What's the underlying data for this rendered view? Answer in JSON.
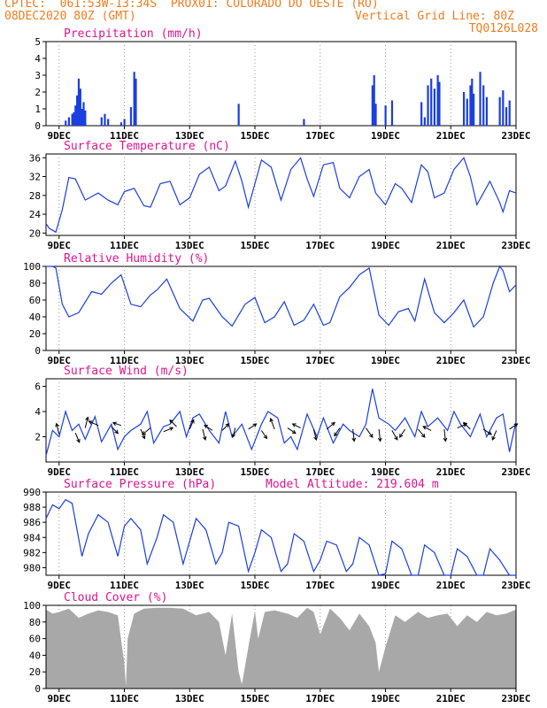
{
  "header": {
    "line1_left": "CPTEC:  061:53W-13:34S  PROX01: COLORADO DO OESTE (RO)",
    "line2_left": "08DEC2020 80Z (GMT)",
    "line2_right": "Vertical Grid Line: 80Z",
    "line3_right": "TQ0126L028"
  },
  "colors": {
    "header": "#f07c1e",
    "title": "#e0148c",
    "series": "#1a3fe0",
    "cloud": "#a8a8a8",
    "grid": "#9a9a9a"
  },
  "x_axis": {
    "start_day": 8.6,
    "end_day": 23,
    "ticks": [
      {
        "day": 9,
        "label": "9DEC"
      },
      {
        "day": 11,
        "label": "11DEC"
      },
      {
        "day": 13,
        "label": "13DEC"
      },
      {
        "day": 15,
        "label": "15DEC"
      },
      {
        "day": 17,
        "label": "17DEC"
      },
      {
        "day": 19,
        "label": "19DEC"
      },
      {
        "day": 21,
        "label": "21DEC"
      },
      {
        "day": 23,
        "label": "23DEC"
      }
    ]
  },
  "chart_data": [
    {
      "id": "precip",
      "type": "bar",
      "title": "Precipitation (mm/h)",
      "ylim": [
        0,
        5
      ],
      "yticks": [
        0,
        1,
        2,
        3,
        4,
        5
      ],
      "x": [
        9.2,
        9.3,
        9.4,
        9.45,
        9.5,
        9.55,
        9.6,
        9.65,
        9.7,
        9.75,
        9.8,
        10.3,
        10.4,
        10.5,
        10.9,
        11.0,
        11.2,
        11.3,
        11.35,
        14.5,
        16.5,
        18.6,
        18.65,
        18.7,
        19.0,
        19.2,
        20.1,
        20.2,
        20.3,
        20.4,
        20.5,
        20.6,
        20.65,
        21.4,
        21.5,
        21.6,
        21.65,
        21.7,
        21.9,
        22.0,
        22.1,
        22.5,
        22.6,
        22.7,
        22.8
      ],
      "values": [
        0.3,
        0.5,
        0.7,
        0.8,
        1.2,
        1.8,
        2.8,
        2.2,
        1.0,
        1.4,
        0.9,
        0.5,
        0.7,
        0.4,
        0.2,
        0.4,
        1.1,
        3.2,
        2.8,
        1.3,
        0.4,
        2.4,
        3.0,
        1.3,
        1.2,
        1.5,
        1.4,
        0.5,
        2.4,
        2.8,
        2.2,
        3.0,
        2.6,
        2.0,
        1.6,
        2.4,
        2.8,
        1.9,
        3.2,
        2.4,
        1.7,
        1.7,
        2.1,
        1.1,
        1.5
      ]
    },
    {
      "id": "temp",
      "type": "line",
      "title": "Surface Temperature (nC)",
      "ylim": [
        19.5,
        36.8
      ],
      "yticks": [
        20,
        24,
        28,
        32,
        36
      ],
      "x": [
        8.6,
        8.7,
        8.9,
        9.1,
        9.3,
        9.5,
        9.8,
        10.2,
        10.5,
        10.8,
        11.0,
        11.3,
        11.6,
        11.8,
        12.1,
        12.4,
        12.7,
        13.0,
        13.3,
        13.6,
        13.9,
        14.1,
        14.4,
        14.6,
        14.8,
        15.2,
        15.5,
        15.8,
        16.1,
        16.4,
        16.6,
        16.8,
        17.1,
        17.4,
        17.6,
        17.9,
        18.2,
        18.5,
        18.7,
        19.0,
        19.3,
        19.5,
        19.8,
        20.1,
        20.3,
        20.5,
        20.8,
        21.1,
        21.4,
        21.6,
        21.8,
        22.2,
        22.5,
        22.6,
        22.8,
        23.0
      ],
      "values": [
        22.0,
        21.0,
        20.2,
        25.0,
        31.8,
        31.5,
        27.0,
        28.5,
        27.0,
        26.0,
        28.8,
        29.5,
        25.8,
        25.5,
        30.5,
        31.0,
        26.0,
        27.5,
        32.5,
        34.0,
        29.0,
        30.0,
        35.3,
        31.0,
        25.5,
        35.5,
        34.0,
        27.0,
        33.5,
        36.0,
        31.5,
        27.8,
        34.5,
        35.0,
        29.5,
        27.5,
        32.0,
        33.5,
        28.5,
        26.0,
        30.5,
        29.5,
        26.5,
        34.5,
        33.0,
        27.5,
        28.5,
        33.5,
        36.0,
        32.0,
        26.0,
        31.0,
        26.5,
        24.5,
        29.0,
        28.5
      ]
    },
    {
      "id": "rh",
      "type": "line",
      "title": "Relative Humidity (%)",
      "ylim": [
        0,
        100
      ],
      "yticks": [
        0,
        20,
        40,
        60,
        80,
        100
      ],
      "x": [
        8.6,
        8.8,
        8.9,
        9.1,
        9.3,
        9.6,
        10.0,
        10.3,
        10.6,
        10.9,
        11.2,
        11.5,
        11.8,
        12.0,
        12.3,
        12.7,
        13.1,
        13.4,
        13.6,
        14.0,
        14.3,
        14.7,
        15.0,
        15.3,
        15.6,
        15.9,
        16.2,
        16.5,
        16.8,
        17.1,
        17.3,
        17.6,
        17.9,
        18.2,
        18.5,
        18.8,
        19.1,
        19.4,
        19.7,
        19.9,
        20.2,
        20.5,
        20.8,
        21.1,
        21.4,
        21.7,
        22.0,
        22.3,
        22.5,
        22.6,
        22.8,
        23.0
      ],
      "values": [
        100,
        100,
        98,
        55,
        40,
        45,
        70,
        67,
        80,
        90,
        55,
        52,
        66,
        72,
        85,
        50,
        35,
        60,
        62,
        40,
        29,
        55,
        63,
        33,
        40,
        58,
        30,
        36,
        55,
        30,
        33,
        64,
        75,
        90,
        98,
        42,
        30,
        46,
        50,
        35,
        85,
        45,
        33,
        45,
        60,
        28,
        40,
        80,
        100,
        95,
        70,
        78
      ]
    },
    {
      "id": "wind",
      "type": "line",
      "title": "Surface Wind (m/s)",
      "ylim": [
        0,
        6.6
      ],
      "yticks": [
        2,
        4,
        6
      ],
      "x": [
        8.6,
        8.8,
        9.0,
        9.2,
        9.4,
        9.6,
        9.8,
        10.1,
        10.3,
        10.6,
        10.8,
        11.0,
        11.2,
        11.5,
        11.7,
        11.9,
        12.2,
        12.4,
        12.7,
        12.9,
        13.1,
        13.3,
        13.6,
        13.9,
        14.1,
        14.3,
        14.6,
        14.9,
        15.2,
        15.4,
        15.7,
        15.9,
        16.1,
        16.3,
        16.6,
        16.9,
        17.1,
        17.4,
        17.7,
        17.9,
        18.2,
        18.4,
        18.6,
        18.8,
        19.1,
        19.3,
        19.6,
        19.9,
        20.1,
        20.3,
        20.6,
        20.9,
        21.1,
        21.3,
        21.6,
        21.9,
        22.1,
        22.4,
        22.6,
        22.8,
        23.0
      ],
      "values": [
        0.5,
        2.5,
        2.0,
        4.0,
        2.5,
        3.0,
        1.8,
        3.6,
        1.6,
        3.0,
        1.0,
        2.0,
        2.5,
        3.0,
        4.0,
        1.5,
        2.8,
        3.0,
        4.0,
        2.0,
        3.5,
        3.8,
        2.5,
        1.5,
        4.0,
        2.0,
        3.0,
        1.0,
        3.0,
        4.0,
        3.5,
        1.5,
        2.0,
        1.0,
        3.8,
        2.0,
        3.5,
        1.5,
        3.0,
        2.5,
        2.0,
        3.0,
        5.8,
        3.5,
        3.0,
        2.5,
        3.5,
        2.0,
        4.0,
        2.8,
        3.5,
        2.5,
        4.0,
        3.0,
        2.0,
        3.8,
        2.0,
        3.5,
        3.8,
        0.8,
        3.2
      ],
      "vectors": [
        {
          "x": 9.0,
          "y": 2.2,
          "u": -0.2,
          "v": 0.8
        },
        {
          "x": 9.5,
          "y": 2.3,
          "u": 0.3,
          "v": -0.7
        },
        {
          "x": 9.8,
          "y": 2.7,
          "u": 0.2,
          "v": 0.8
        },
        {
          "x": 10.2,
          "y": 2.9,
          "u": -0.7,
          "v": 0.3
        },
        {
          "x": 10.6,
          "y": 2.8,
          "u": 0.5,
          "v": -0.5
        },
        {
          "x": 10.9,
          "y": 2.9,
          "u": -0.6,
          "v": 0.2
        },
        {
          "x": 11.5,
          "y": 2.6,
          "u": 0.3,
          "v": -0.7
        },
        {
          "x": 11.8,
          "y": 2.7,
          "u": -0.6,
          "v": -0.5
        },
        {
          "x": 12.2,
          "y": 2.4,
          "u": 0.7,
          "v": 0.3
        },
        {
          "x": 12.6,
          "y": 2.8,
          "u": -0.5,
          "v": 0.5
        },
        {
          "x": 13.0,
          "y": 2.6,
          "u": 0.3,
          "v": 0.7
        },
        {
          "x": 13.4,
          "y": 2.6,
          "u": 0.2,
          "v": -0.8
        },
        {
          "x": 13.7,
          "y": 2.5,
          "u": -0.6,
          "v": 0.4
        },
        {
          "x": 14.0,
          "y": 2.5,
          "u": 0.5,
          "v": 0.5
        },
        {
          "x": 14.4,
          "y": 2.7,
          "u": -0.2,
          "v": -0.7
        },
        {
          "x": 14.8,
          "y": 2.6,
          "u": 0.6,
          "v": 0.4
        },
        {
          "x": 15.2,
          "y": 2.5,
          "u": 0.4,
          "v": -0.6
        },
        {
          "x": 15.6,
          "y": 2.6,
          "u": -0.3,
          "v": 0.8
        },
        {
          "x": 16.0,
          "y": 2.7,
          "u": 0.6,
          "v": -0.4
        },
        {
          "x": 16.4,
          "y": 2.7,
          "u": -0.6,
          "v": 0.3
        },
        {
          "x": 16.8,
          "y": 2.6,
          "u": 0.2,
          "v": -0.8
        },
        {
          "x": 17.2,
          "y": 2.6,
          "u": 0.6,
          "v": 0.5
        },
        {
          "x": 17.6,
          "y": 2.7,
          "u": -0.4,
          "v": -0.6
        },
        {
          "x": 18.0,
          "y": 2.6,
          "u": 0.1,
          "v": -0.9
        },
        {
          "x": 18.4,
          "y": 2.7,
          "u": 0.5,
          "v": -0.7
        },
        {
          "x": 18.8,
          "y": 2.6,
          "u": 0.1,
          "v": -0.9
        },
        {
          "x": 19.2,
          "y": 2.5,
          "u": 0.4,
          "v": -0.7
        },
        {
          "x": 19.6,
          "y": 2.6,
          "u": -0.4,
          "v": -0.6
        },
        {
          "x": 20.0,
          "y": 2.6,
          "u": 0.5,
          "v": -0.6
        },
        {
          "x": 20.4,
          "y": 2.5,
          "u": -0.6,
          "v": 0.3
        },
        {
          "x": 20.8,
          "y": 2.6,
          "u": 0.1,
          "v": -0.9
        },
        {
          "x": 21.2,
          "y": 2.7,
          "u": 0.7,
          "v": 0.3
        },
        {
          "x": 21.6,
          "y": 2.6,
          "u": -0.5,
          "v": 0.5
        },
        {
          "x": 22.0,
          "y": 2.6,
          "u": 0.6,
          "v": -0.4
        },
        {
          "x": 22.4,
          "y": 2.5,
          "u": -0.3,
          "v": -0.7
        },
        {
          "x": 22.8,
          "y": 2.6,
          "u": 0.6,
          "v": 0.4
        }
      ]
    },
    {
      "id": "pres",
      "type": "line",
      "title": "Surface Pressure (hPa)",
      "annotation": "Model Altitude: 219.604 m",
      "ylim": [
        979,
        990
      ],
      "yticks": [
        980,
        982,
        984,
        986,
        988,
        990
      ],
      "x": [
        8.6,
        8.8,
        9.0,
        9.2,
        9.4,
        9.7,
        9.9,
        10.2,
        10.5,
        10.8,
        11.0,
        11.2,
        11.5,
        11.7,
        12.0,
        12.2,
        12.5,
        12.8,
        13.0,
        13.2,
        13.5,
        13.8,
        14.0,
        14.2,
        14.5,
        14.8,
        15.0,
        15.2,
        15.5,
        15.8,
        16.0,
        16.2,
        16.5,
        16.8,
        17.0,
        17.2,
        17.5,
        17.8,
        18.0,
        18.2,
        18.5,
        18.8,
        19.0,
        19.2,
        19.5,
        19.8,
        20.0,
        20.2,
        20.5,
        20.8,
        21.0,
        21.2,
        21.5,
        21.8,
        22.0,
        22.2,
        22.5,
        22.8,
        23.0
      ],
      "values": [
        986.5,
        988.3,
        987.8,
        989.0,
        988.5,
        981.5,
        984.5,
        987.0,
        986.0,
        981.5,
        985.5,
        986.5,
        985.0,
        980.5,
        984.0,
        987.0,
        986.0,
        980.5,
        983.5,
        986.5,
        985.0,
        980.5,
        982.0,
        986.0,
        985.5,
        979.5,
        982.0,
        985.0,
        984.0,
        979.5,
        980.5,
        984.5,
        983.5,
        979.5,
        981.0,
        983.5,
        983.0,
        979.5,
        980.5,
        984.0,
        983.0,
        979.0,
        979.2,
        983.5,
        982.5,
        979.0,
        979.0,
        983.0,
        982.0,
        979.0,
        979.0,
        982.5,
        981.5,
        979.0,
        979.0,
        982.5,
        981.0,
        979.0,
        979.0
      ]
    },
    {
      "id": "cloud",
      "type": "area",
      "title": "Cloud Cover (%)",
      "ylim": [
        0,
        100
      ],
      "yticks": [
        0,
        20,
        40,
        60,
        80,
        100
      ],
      "x": [
        8.6,
        8.8,
        9.0,
        9.3,
        9.6,
        9.9,
        10.2,
        10.5,
        10.8,
        11.0,
        11.05,
        11.1,
        11.3,
        11.6,
        12.0,
        12.4,
        12.8,
        13.2,
        13.6,
        13.9,
        14.1,
        14.3,
        14.5,
        14.6,
        14.8,
        15.0,
        15.1,
        15.3,
        15.6,
        16.0,
        16.3,
        16.6,
        16.8,
        17.0,
        17.3,
        17.6,
        17.9,
        18.2,
        18.5,
        18.7,
        18.8,
        19.0,
        19.3,
        19.6,
        20.0,
        20.3,
        20.6,
        20.9,
        21.2,
        21.5,
        21.8,
        22.1,
        22.4,
        22.7,
        23.0
      ],
      "values": [
        95,
        90,
        92,
        96,
        85,
        90,
        94,
        92,
        88,
        30,
        3,
        60,
        90,
        96,
        97,
        97,
        96,
        88,
        92,
        80,
        40,
        90,
        20,
        5,
        50,
        93,
        60,
        92,
        94,
        90,
        85,
        97,
        92,
        65,
        96,
        85,
        70,
        90,
        75,
        55,
        20,
        50,
        88,
        80,
        92,
        85,
        88,
        90,
        75,
        88,
        80,
        92,
        88,
        90,
        95
      ]
    }
  ]
}
